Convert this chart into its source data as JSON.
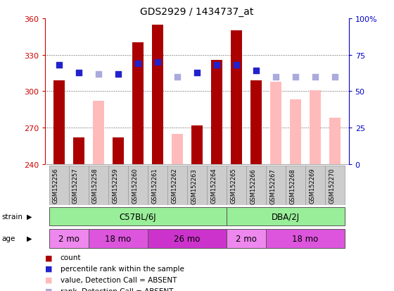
{
  "title": "GDS2929 / 1434737_at",
  "samples": [
    "GSM152256",
    "GSM152257",
    "GSM152258",
    "GSM152259",
    "GSM152260",
    "GSM152261",
    "GSM152262",
    "GSM152263",
    "GSM152264",
    "GSM152265",
    "GSM152266",
    "GSM152267",
    "GSM152268",
    "GSM152269",
    "GSM152270"
  ],
  "bar_values": [
    309,
    262,
    null,
    262,
    340,
    355,
    null,
    272,
    326,
    350,
    309,
    null,
    null,
    null,
    null
  ],
  "bar_absent_values": [
    null,
    null,
    292,
    null,
    null,
    null,
    265,
    null,
    null,
    null,
    null,
    308,
    293,
    301,
    278
  ],
  "dot_present": [
    68,
    63,
    null,
    62,
    69,
    70,
    null,
    63,
    68,
    68,
    64,
    null,
    null,
    null,
    null
  ],
  "dot_absent": [
    null,
    null,
    62,
    null,
    null,
    null,
    60,
    null,
    null,
    null,
    null,
    60,
    60,
    60,
    60
  ],
  "ylim_left": [
    240,
    360
  ],
  "ylim_right": [
    0,
    100
  ],
  "yticks_left": [
    240,
    270,
    300,
    330,
    360
  ],
  "yticks_right": [
    0,
    25,
    50,
    75,
    100
  ],
  "ytick_labels_right": [
    "0",
    "25",
    "50",
    "75",
    "100%"
  ],
  "bar_color_present": "#aa0000",
  "bar_color_absent": "#ffbbbb",
  "dot_color_present": "#2222cc",
  "dot_color_absent": "#aaaadd",
  "strain_labels": [
    {
      "label": "C57BL/6J",
      "start": 0,
      "end": 9
    },
    {
      "label": "DBA/2J",
      "start": 9,
      "end": 15
    }
  ],
  "age_labels": [
    {
      "label": "2 mo",
      "start": 0,
      "end": 2
    },
    {
      "label": "18 mo",
      "start": 2,
      "end": 5
    },
    {
      "label": "26 mo",
      "start": 5,
      "end": 9
    },
    {
      "label": "2 mo",
      "start": 9,
      "end": 11
    },
    {
      "label": "18 mo",
      "start": 11,
      "end": 15
    }
  ],
  "strain_color": "#99ee99",
  "age_colors": [
    "#ee88ee",
    "#dd55dd",
    "#cc33cc",
    "#ee88ee",
    "#dd55dd"
  ],
  "background_color": "#ffffff",
  "grid_color": "#555555",
  "tick_color_left": "#cc0000",
  "tick_color_right": "#0000cc",
  "bar_width": 0.55,
  "dot_size": 40
}
